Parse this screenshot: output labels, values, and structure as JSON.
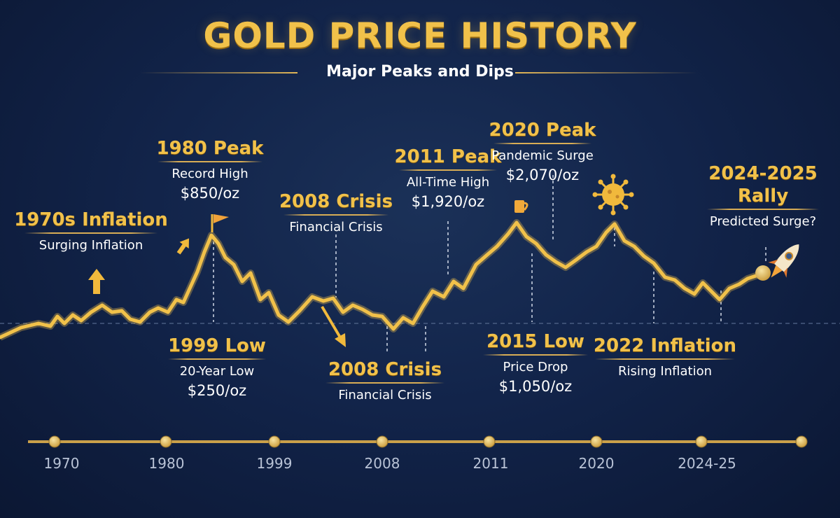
{
  "chart_data": {
    "type": "line",
    "title": "GOLD PRICE HISTORY",
    "subtitle": "Major Peaks and Dips",
    "timeline_labels": [
      "1970",
      "1980",
      "1999",
      "2008",
      "2011",
      "2020",
      "2024-25"
    ],
    "grid": false,
    "line_color": "#f1c14a",
    "annotations": [
      {
        "key": "a1970s",
        "heading": "1970s Inflation",
        "detail": "Surging Inflation",
        "value": ""
      },
      {
        "key": "a1980",
        "heading": "1980 Peak",
        "detail": "Record High",
        "value": "$850/oz"
      },
      {
        "key": "a1999",
        "heading": "1999 Low",
        "detail": "20-Year Low",
        "value": "$250/oz"
      },
      {
        "key": "a2008top",
        "heading": "2008 Crisis",
        "detail": "Financial Crisis",
        "value": ""
      },
      {
        "key": "a2008bot",
        "heading": "2008 Crisis",
        "detail": "Financial Crisis",
        "value": ""
      },
      {
        "key": "a2011",
        "heading": "2011 Peak",
        "detail": "All-Time High",
        "value": "$1,920/oz"
      },
      {
        "key": "a2015",
        "heading": "2015 Low",
        "detail": "Price Drop",
        "value": "$1,050/oz"
      },
      {
        "key": "a2020",
        "heading": "2020 Peak",
        "detail": "Pandemic Surge",
        "value": "$2,070/oz"
      },
      {
        "key": "a2022",
        "heading": "2022 Inflation",
        "detail": "Rising Inflation",
        "value": ""
      },
      {
        "key": "a2024",
        "heading": "2024-2025 Rally",
        "detail": "Predicted Surge?",
        "value": ""
      }
    ]
  },
  "icons": [
    "flag-icon",
    "arrow-up-icon",
    "arrow-down-right-icon",
    "virus-icon",
    "rocket-icon",
    "cup-icon"
  ]
}
